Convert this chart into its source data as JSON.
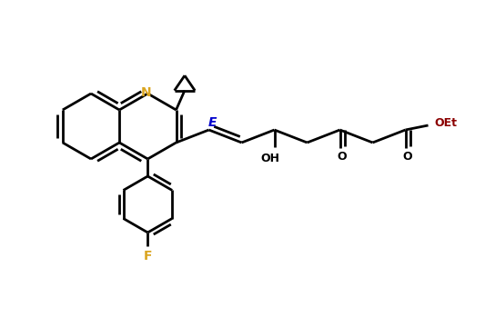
{
  "background_color": "#ffffff",
  "line_color": "#000000",
  "N_color": "#daa520",
  "F_color": "#daa520",
  "label_color_E": "#0000cd",
  "label_color_OEt": "#8b0000",
  "line_width": 2.0,
  "figsize": [
    5.33,
    3.49
  ],
  "dpi": 100,
  "xlim": [
    0,
    10.66
  ],
  "ylim": [
    0,
    6.98
  ]
}
